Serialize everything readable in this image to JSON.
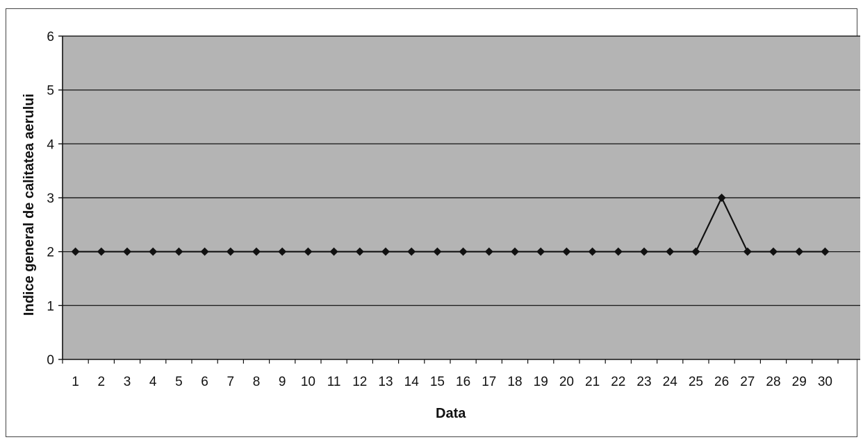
{
  "chart_data": {
    "type": "line",
    "title": "",
    "xlabel": "Data",
    "ylabel": "Indice general de calitatea aerului",
    "categories": [
      "1",
      "2",
      "3",
      "4",
      "5",
      "6",
      "7",
      "8",
      "9",
      "10",
      "11",
      "12",
      "13",
      "14",
      "15",
      "16",
      "17",
      "18",
      "19",
      "20",
      "21",
      "22",
      "23",
      "24",
      "25",
      "26",
      "27",
      "28",
      "29",
      "30"
    ],
    "series": [
      {
        "values": [
          2.0,
          2.0,
          2.0,
          2.0,
          2.0,
          2.0,
          2.0,
          2.0,
          2.0,
          2.0,
          2.0,
          2.0,
          2.0,
          2.0,
          2.0,
          2.0,
          2.0,
          2.0,
          2.0,
          2.0,
          2.0,
          2.0,
          2.0,
          2.0,
          2.0,
          3.0,
          2.0,
          2.0,
          2.0,
          2.0
        ]
      }
    ],
    "ylim": [
      0,
      6
    ],
    "yticks": [
      "0",
      "1",
      "2",
      "3",
      "4",
      "5",
      "6"
    ],
    "grid": true,
    "legend": "none",
    "colors": {
      "plot_background": "#b4b4b4",
      "line": "#111111",
      "marker": "#111111",
      "gridline": "#222222"
    }
  }
}
